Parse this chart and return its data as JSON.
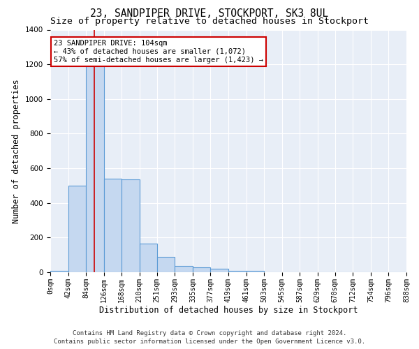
{
  "title": "23, SANDPIPER DRIVE, STOCKPORT, SK3 8UL",
  "subtitle": "Size of property relative to detached houses in Stockport",
  "xlabel": "Distribution of detached houses by size in Stockport",
  "ylabel": "Number of detached properties",
  "bin_edges": [
    0,
    42,
    84,
    126,
    168,
    210,
    251,
    293,
    335,
    377,
    419,
    461,
    503,
    545,
    587,
    629,
    670,
    712,
    754,
    796,
    838
  ],
  "bar_heights": [
    10,
    500,
    1250,
    540,
    535,
    165,
    90,
    35,
    30,
    20,
    10,
    10,
    0,
    0,
    0,
    0,
    0,
    0,
    0,
    0
  ],
  "bar_color": "#c5d8f0",
  "bar_edge_color": "#5b9bd5",
  "bar_edge_width": 0.8,
  "property_size": 104,
  "property_line_color": "#cc0000",
  "ylim": [
    0,
    1400
  ],
  "yticks": [
    0,
    200,
    400,
    600,
    800,
    1000,
    1200,
    1400
  ],
  "annotation_text": "23 SANDPIPER DRIVE: 104sqm\n← 43% of detached houses are smaller (1,072)\n57% of semi-detached houses are larger (1,423) →",
  "annotation_box_color": "#ffffff",
  "annotation_border_color": "#cc0000",
  "background_color": "#e8eef7",
  "fig_background_color": "#ffffff",
  "grid_color": "#ffffff",
  "footer_text": "Contains HM Land Registry data © Crown copyright and database right 2024.\nContains public sector information licensed under the Open Government Licence v3.0.",
  "title_fontsize": 10.5,
  "subtitle_fontsize": 9.5,
  "axis_label_fontsize": 8.5,
  "tick_fontsize": 7,
  "ytick_fontsize": 7.5,
  "annotation_fontsize": 7.5,
  "footer_fontsize": 6.5
}
